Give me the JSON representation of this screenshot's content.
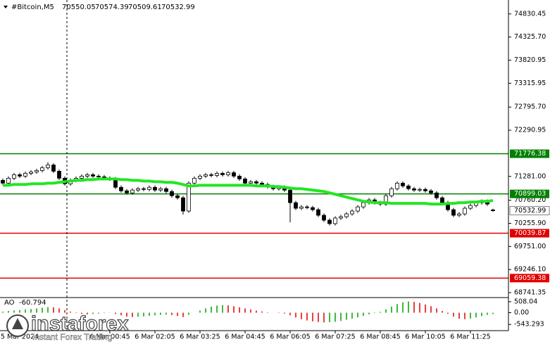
{
  "chart_data": {
    "type": "candlestick",
    "symbol": "#Bitcoin,M5",
    "categories": [
      null,
      null,
      null,
      "5 Mar 2024",
      null,
      null,
      null,
      null,
      null,
      null,
      null,
      null,
      null,
      null,
      null,
      null,
      null,
      null,
      null,
      "6 Mar 00:45",
      null,
      null,
      null,
      null,
      null,
      null,
      null,
      "6 Mar 02:05",
      null,
      null,
      null,
      null,
      null,
      null,
      null,
      "6 Mar 03:25",
      null,
      null,
      null,
      null,
      null,
      null,
      null,
      "6 Mar 04:45",
      null,
      null,
      null,
      null,
      null,
      null,
      null,
      "6 Mar 06:05",
      null,
      null,
      null,
      null,
      null,
      null,
      null,
      "6 Mar 07:25",
      null,
      null,
      null,
      null,
      null,
      null,
      null,
      "6 Mar 08:45",
      null,
      null,
      null,
      null,
      null,
      null,
      null,
      "6 Mar 10:05",
      null,
      null,
      null,
      null,
      null,
      null,
      null,
      "6 Mar 11:25",
      null,
      null,
      null,
      null
    ],
    "open": [
      71195,
      71134,
      71241,
      71318,
      71287,
      71348,
      71379,
      71409,
      71470,
      71531,
      71394,
      71241,
      71119,
      71195,
      71241,
      71287,
      71318,
      71287,
      71272,
      71241,
      71226,
      71043,
      70966,
      70921,
      70982,
      71012,
      70997,
      71043,
      70982,
      71012,
      70951,
      70859,
      70814,
      70524,
      71134,
      71241,
      71287,
      71318,
      71302,
      71348,
      71318,
      71363,
      71287,
      71226,
      71134,
      71165,
      71134,
      71104,
      71058,
      71012,
      71043,
      70982,
      70707,
      70585,
      70615,
      70600,
      70554,
      70432,
      70325,
      70249,
      70371,
      70401,
      70462,
      70524,
      70615,
      70707,
      70768,
      70707,
      70676,
      70859,
      71012,
      71134,
      71073,
      71012,
      70982,
      70997,
      70966,
      70921,
      70814,
      70707,
      70554,
      70432,
      70462,
      70585,
      70646,
      70707,
      70737,
      70550.05
    ],
    "high": [
      71235,
      71281,
      71358,
      71358,
      71388,
      71419,
      71449,
      71510,
      71592,
      71571,
      71434,
      71281,
      71235,
      71281,
      71327,
      71358,
      71358,
      71327,
      71312,
      71281,
      71266,
      71083,
      71006,
      71022,
      71052,
      71052,
      71083,
      71083,
      71052,
      71052,
      70991,
      70899,
      70854,
      71174,
      71281,
      71327,
      71358,
      71358,
      71388,
      71388,
      71403,
      71403,
      71327,
      71266,
      71205,
      71205,
      71174,
      71144,
      71098,
      71083,
      71083,
      71022,
      70747,
      70655,
      70655,
      70640,
      70594,
      70472,
      70365,
      70411,
      70441,
      70502,
      70564,
      70655,
      70747,
      70808,
      70808,
      70747,
      70899,
      71052,
      71174,
      71174,
      71113,
      71052,
      71037,
      71037,
      71006,
      70961,
      70854,
      70747,
      70594,
      70502,
      70625,
      70686,
      70747,
      70777,
      70777,
      70574.39
    ],
    "low": [
      71094,
      71094,
      71201,
      71247,
      71247,
      71308,
      71339,
      71369,
      71430,
      71354,
      71201,
      71079,
      71079,
      71155,
      71201,
      71247,
      71247,
      71232,
      71201,
      71186,
      71003,
      70926,
      70881,
      70881,
      70942,
      70957,
      70957,
      70942,
      70942,
      70911,
      70819,
      70774,
      70447,
      70484,
      71094,
      71201,
      71247,
      71262,
      71262,
      71278,
      71278,
      71247,
      71186,
      71094,
      71094,
      71094,
      71064,
      71018,
      70972,
      70972,
      70942,
      70279,
      70545,
      70545,
      70560,
      70514,
      70392,
      70285,
      70209,
      70209,
      70331,
      70361,
      70422,
      70484,
      70575,
      70667,
      70667,
      70636,
      70636,
      70819,
      70972,
      71033,
      70972,
      70942,
      70942,
      70926,
      70881,
      70774,
      70667,
      70514,
      70392,
      70392,
      70422,
      70545,
      70606,
      70667,
      70636,
      70509.61
    ],
    "close": [
      71134,
      71241,
      71318,
      71287,
      71348,
      71379,
      71409,
      71470,
      71531,
      71394,
      71241,
      71119,
      71195,
      71241,
      71287,
      71318,
      71287,
      71272,
      71241,
      71226,
      71043,
      70966,
      70921,
      70982,
      71012,
      70997,
      71043,
      70982,
      71012,
      70951,
      70859,
      70814,
      70524,
      71134,
      71241,
      71287,
      71318,
      71302,
      71348,
      71318,
      71363,
      71287,
      71226,
      71134,
      71165,
      71134,
      71104,
      71058,
      71012,
      71043,
      70982,
      70707,
      70585,
      70615,
      70600,
      70554,
      70432,
      70325,
      70249,
      70371,
      70401,
      70462,
      70524,
      70615,
      70707,
      70768,
      70707,
      70676,
      70859,
      71012,
      71134,
      71073,
      71012,
      70982,
      70997,
      70966,
      70921,
      70814,
      70707,
      70554,
      70432,
      70462,
      70585,
      70646,
      70707,
      70737,
      70676,
      70532.99
    ],
    "ma": {
      "color": "#22e622",
      "values": [
        71088,
        71088,
        71104,
        71104,
        71104,
        71119,
        71119,
        71119,
        71134,
        71134,
        71150,
        71165,
        71180,
        71195,
        71195,
        71211,
        71211,
        71226,
        71226,
        71226,
        71226,
        71211,
        71211,
        71195,
        71195,
        71180,
        71180,
        71165,
        71165,
        71150,
        71150,
        71134,
        71104,
        71073,
        71073,
        71088,
        71088,
        71088,
        71088,
        71088,
        71088,
        71088,
        71088,
        71088,
        71088,
        71073,
        71073,
        71073,
        71058,
        71058,
        71043,
        71027,
        71012,
        71012,
        70997,
        70982,
        70966,
        70951,
        70921,
        70890,
        70859,
        70829,
        70798,
        70768,
        70737,
        70722,
        70707,
        70707,
        70707,
        70691,
        70691,
        70691,
        70691,
        70691,
        70691,
        70691,
        70676,
        70676,
        70676,
        70691,
        70691,
        70707,
        70707,
        70722,
        70722,
        70737,
        70737,
        70753
      ]
    },
    "ylim": [
      68634,
      75135
    ],
    "yticks": [
      74830.45,
      {
        "value": 74325.7,
        "label": "74325.70"
      },
      73820.95,
      73315.95,
      {
        "value": 72795.7,
        "label": "72795.70"
      },
      72290.95,
      {
        "value": 71281,
        "label": "71281.00"
      },
      {
        "value": 70760.2,
        "label": "70760.20"
      },
      {
        "value": 70255.9,
        "label": "70255.90"
      },
      {
        "value": 69751,
        "label": "69751.00"
      },
      {
        "value": 69246.1,
        "label": "69246.10"
      },
      68741.35
    ],
    "levels": [
      {
        "value": 71776.38,
        "color": "#008000"
      },
      {
        "value": 70899.03,
        "color": "#008000"
      },
      {
        "value": 70039.87,
        "color": "#e00000"
      },
      {
        "value": 69059.38,
        "color": "#e00000"
      }
    ],
    "ao": {
      "name": "AO",
      "up_color": "#00a000",
      "down_color": "#e00000",
      "values": [
        50,
        80,
        100,
        120,
        150,
        170,
        200,
        230,
        260,
        250,
        200,
        120,
        50,
        -20,
        -60,
        -80,
        -60,
        -40,
        -20,
        -10,
        -60,
        -120,
        -180,
        -200,
        -190,
        -170,
        -150,
        -120,
        -100,
        -90,
        -110,
        -150,
        -200,
        -100,
        0,
        100,
        200,
        280,
        330,
        350,
        340,
        300,
        250,
        200,
        150,
        100,
        60,
        20,
        0,
        -20,
        -40,
        -120,
        -220,
        -300,
        -360,
        -400,
        -430,
        -450,
        -440,
        -420,
        -380,
        -330,
        -280,
        -220,
        -150,
        -80,
        -20,
        40,
        150,
        280,
        400,
        480,
        520,
        500,
        450,
        380,
        300,
        200,
        80,
        -50,
        -180,
        -280,
        -300,
        -270,
        -220,
        -160,
        -100,
        -60.794
      ],
      "ylim": [
        -830,
        667
      ],
      "yticks": [
        508.04,
        {
          "value": 0,
          "label": "0.00"
        },
        -543.293
      ]
    }
  },
  "logo": {
    "brand": "instaforex",
    "tagline": "Instant Forex Trading"
  }
}
